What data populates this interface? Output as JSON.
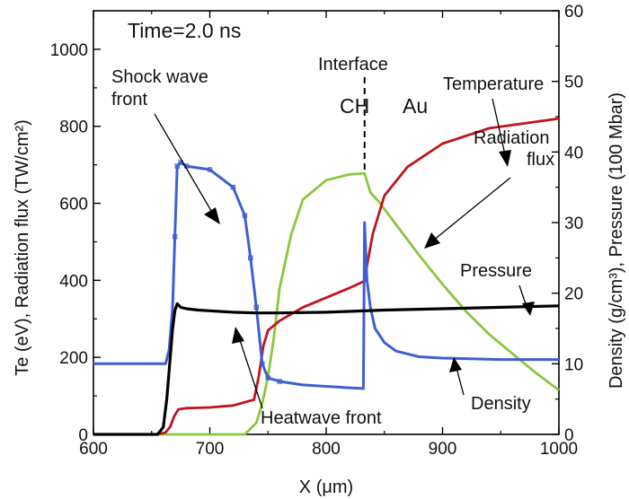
{
  "chart_data": {
    "type": "line",
    "annotation_time": "Time=2.0 ns",
    "xlabel": "X (μm)",
    "ylabel_left": "Te (eV), Radiation flux (TW/cm²)",
    "ylabel_right": "Density (g/cm³), Pressure (100 Mbar)",
    "xlim": [
      600,
      1000
    ],
    "ylim_left": [
      0,
      1100
    ],
    "ylim_right": [
      0,
      60
    ],
    "x_ticks": [
      "600",
      "700",
      "800",
      "900",
      "1000"
    ],
    "y_left_ticks": [
      "0",
      "200",
      "400",
      "600",
      "800",
      "1000"
    ],
    "y_right_ticks": [
      "0",
      "10",
      "20",
      "30",
      "40",
      "50",
      "60"
    ],
    "interface_x": 833,
    "series": [
      {
        "name": "Temperature",
        "axis": "left",
        "color": "#c0141c",
        "x": [
          600,
          655,
          662,
          666,
          669,
          673,
          680,
          700,
          720,
          738,
          742,
          746,
          750,
          760,
          780,
          800,
          820,
          833,
          834,
          840,
          850,
          870,
          900,
          940,
          1000
        ],
        "y": [
          0,
          0,
          5,
          20,
          45,
          65,
          68,
          70,
          75,
          90,
          150,
          230,
          270,
          295,
          330,
          355,
          380,
          398,
          420,
          520,
          620,
          695,
          755,
          795,
          820
        ]
      },
      {
        "name": "Radiation flux",
        "axis": "left",
        "color": "#8cc63f",
        "x": [
          600,
          710,
          730,
          740,
          745,
          750,
          755,
          760,
          770,
          780,
          800,
          820,
          833,
          838,
          845,
          860,
          880,
          900,
          920,
          940,
          960,
          980,
          1000
        ],
        "y": [
          0,
          0,
          0,
          30,
          80,
          150,
          250,
          380,
          520,
          610,
          660,
          675,
          678,
          628,
          605,
          545,
          465,
          390,
          320,
          260,
          210,
          160,
          115
        ]
      },
      {
        "name": "Density",
        "axis": "right",
        "color": "#3f5fd0",
        "x": [
          600,
          662,
          665,
          668,
          670,
          672,
          675,
          680,
          700,
          720,
          730,
          735,
          740,
          745,
          750,
          760,
          780,
          800,
          820,
          832,
          833,
          835,
          838,
          842,
          850,
          860,
          880,
          900,
          950,
          1000
        ],
        "y": [
          10,
          10,
          12,
          18,
          28,
          38,
          38.5,
          38,
          37.5,
          35,
          31,
          25,
          18,
          10,
          8,
          7.5,
          7,
          6.8,
          6.6,
          6.5,
          30,
          22,
          18,
          15,
          13,
          11.8,
          11,
          10.8,
          10.6,
          10.6
        ]
      },
      {
        "name": "Pressure",
        "axis": "right",
        "color": "#000000",
        "x": [
          600,
          655,
          660,
          663,
          666,
          668,
          670,
          672,
          675,
          680,
          690,
          700,
          720,
          740,
          760,
          800,
          850,
          900,
          950,
          1000
        ],
        "y": [
          0,
          0,
          1,
          5,
          11,
          15,
          17.5,
          18.5,
          18,
          17.8,
          17.6,
          17.5,
          17.3,
          17.2,
          17.2,
          17.3,
          17.6,
          17.8,
          18,
          18.2
        ]
      }
    ],
    "annotations": {
      "shock_front": [
        "Shock wave",
        "front"
      ],
      "interface": "Interface",
      "ch": "CH",
      "au": "Au",
      "temperature": "Temperature",
      "radiation_flux": [
        "Radiation",
        "flux"
      ],
      "pressure": "Pressure",
      "density": "Density",
      "heatwave_front": "Heatwave front"
    }
  }
}
